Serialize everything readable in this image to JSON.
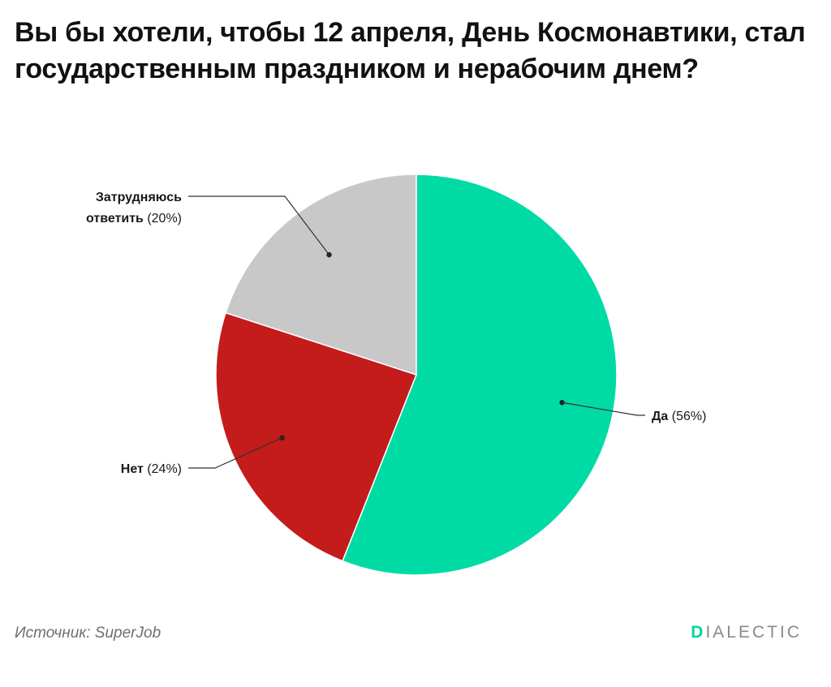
{
  "header": {
    "title": "Вы бы хотели, чтобы 12 апреля, День Космонавтики, стал государственным праздником и нерабочим днем?"
  },
  "chart_data": {
    "type": "pie",
    "title": "Вы бы хотели, чтобы 12 апреля, День Космонавтики, стал государственным праздником и нерабочим днем?",
    "slices": [
      {
        "label": "Да",
        "value": 56,
        "value_label": "(56%)",
        "color": "#00dba6"
      },
      {
        "label": "Нет",
        "value": 24,
        "value_label": "(24%)",
        "color": "#c41b1b"
      },
      {
        "label": "Затрудняюсь ответить",
        "label_lines": [
          "Затрудняюсь",
          "ответить"
        ],
        "value": 20,
        "value_label": "(20%)",
        "color": "#c8c8c8"
      }
    ],
    "start_angle_deg": 0,
    "direction": "clockwise",
    "legend": "none"
  },
  "footer": {
    "source": "Источник: SuperJob",
    "brand_first": "D",
    "brand_rest": "IALECTIC",
    "brand_accent": "#00d6a0"
  }
}
